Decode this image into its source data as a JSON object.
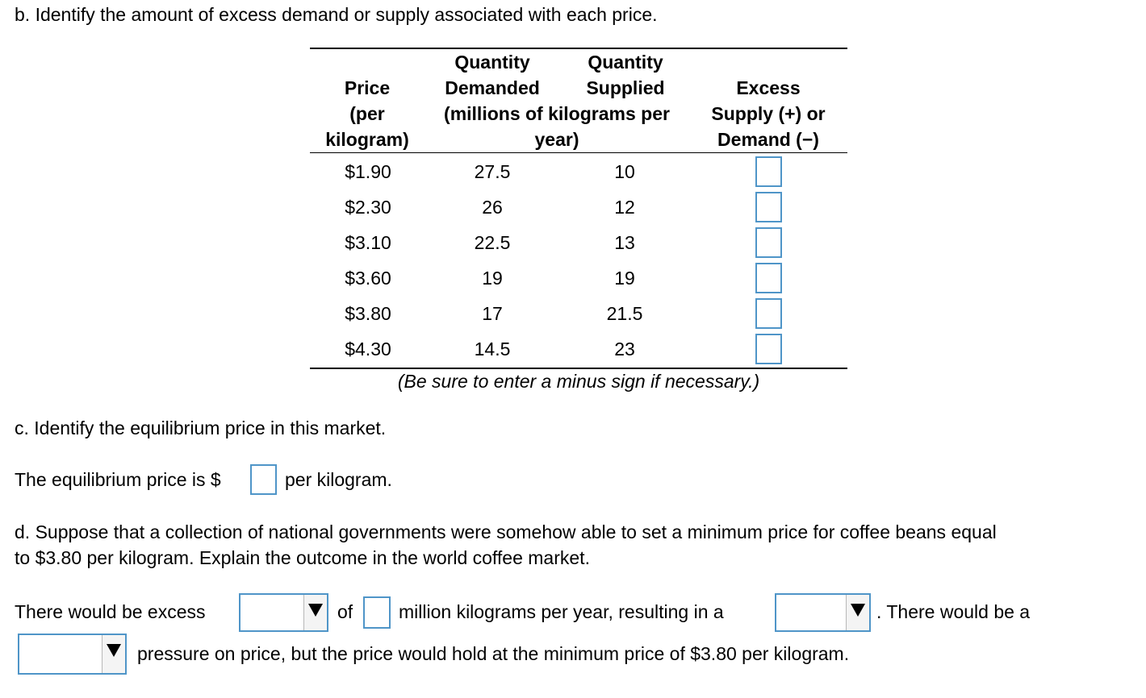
{
  "part_b": {
    "prompt": "b. Identify the amount of excess demand or supply associated with each price.",
    "table": {
      "headers": {
        "price": [
          "Price",
          "(per",
          "kilogram)"
        ],
        "demanded": [
          "Quantity",
          "Demanded"
        ],
        "supplied": [
          "Quantity",
          "Supplied"
        ],
        "units": [
          "(millions of kilograms per",
          "year)"
        ],
        "excess": [
          "Excess",
          "Supply (+) or",
          "Demand (−)"
        ]
      },
      "rows": [
        {
          "price": "$1.90",
          "demanded": "27.5",
          "supplied": "10"
        },
        {
          "price": "$2.30",
          "demanded": "26",
          "supplied": "12"
        },
        {
          "price": "$3.10",
          "demanded": "22.5",
          "supplied": "13"
        },
        {
          "price": "$3.60",
          "demanded": "19",
          "supplied": "19"
        },
        {
          "price": "$3.80",
          "demanded": "17",
          "supplied": "21.5"
        },
        {
          "price": "$4.30",
          "demanded": "14.5",
          "supplied": "23"
        }
      ]
    },
    "note": "(Be sure to enter a minus sign if necessary.)"
  },
  "part_c": {
    "prompt": "c. Identify the equilibrium price in this market.",
    "answer_prefix": "The equilibrium price is $",
    "answer_suffix": "per kilogram."
  },
  "part_d": {
    "prompt_line1": "d. Suppose that a collection of national governments were somehow able to set a minimum price for coffee beans equal",
    "prompt_line2": "to $3.80 per kilogram. Explain the outcome in the world coffee market.",
    "s1": "There would be excess",
    "s2": "of",
    "s3": "million kilograms per year, resulting in a",
    "s4": ". There would be a",
    "s5": "pressure on price, but the price would hold at the minimum price of $3.80 per kilogram."
  },
  "colors": {
    "input_border": "#4f95c8"
  }
}
